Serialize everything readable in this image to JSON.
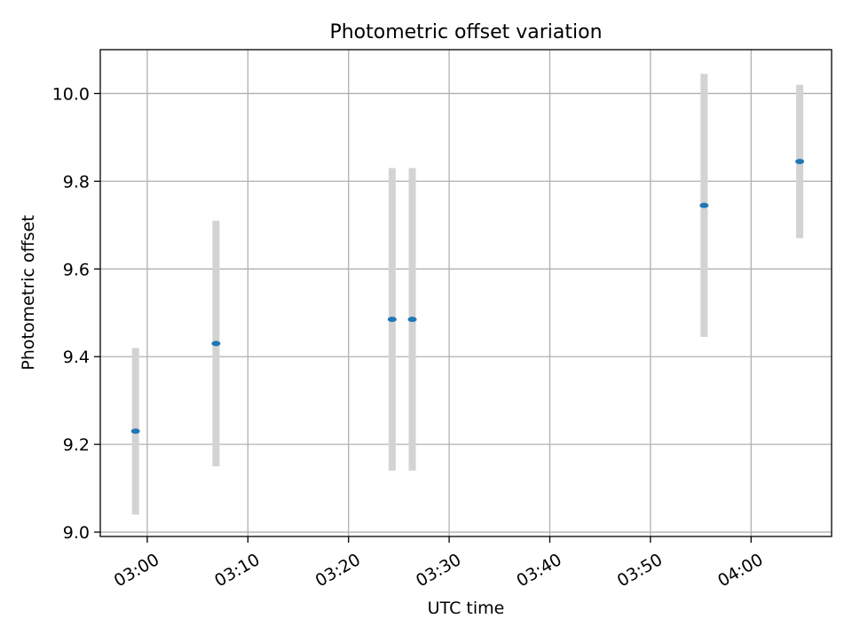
{
  "chart_data": {
    "type": "scatter",
    "title": "Photometric offset variation",
    "xlabel": "UTC time",
    "ylabel": "Photometric offset",
    "x_type": "time",
    "x_tick_labels": [
      "03:00",
      "03:10",
      "03:20",
      "03:30",
      "03:40",
      "03:50",
      "04:00"
    ],
    "xlim": [
      "02:55:20",
      "04:08:00"
    ],
    "y_tick_labels": [
      "9.0",
      "9.2",
      "9.4",
      "9.6",
      "9.8",
      "10.0"
    ],
    "ylim": [
      8.99,
      10.1
    ],
    "grid": true,
    "series": [
      {
        "points": [
          {
            "x": "02:58:50",
            "y": 9.23,
            "err_low": 9.04,
            "err_high": 9.42
          },
          {
            "x": "03:06:50",
            "y": 9.43,
            "err_low": 9.15,
            "err_high": 9.71
          },
          {
            "x": "03:24:20",
            "y": 9.485,
            "err_low": 9.14,
            "err_high": 9.83
          },
          {
            "x": "03:26:20",
            "y": 9.485,
            "err_low": 9.14,
            "err_high": 9.83
          },
          {
            "x": "03:55:20",
            "y": 9.745,
            "err_low": 9.445,
            "err_high": 10.045
          },
          {
            "x": "04:04:50",
            "y": 9.845,
            "err_low": 9.67,
            "err_high": 10.02
          }
        ]
      }
    ],
    "colors": {
      "marker": "#1f77b4",
      "errorbar": "#d3d3d3",
      "grid": "#b0b0b0"
    }
  }
}
